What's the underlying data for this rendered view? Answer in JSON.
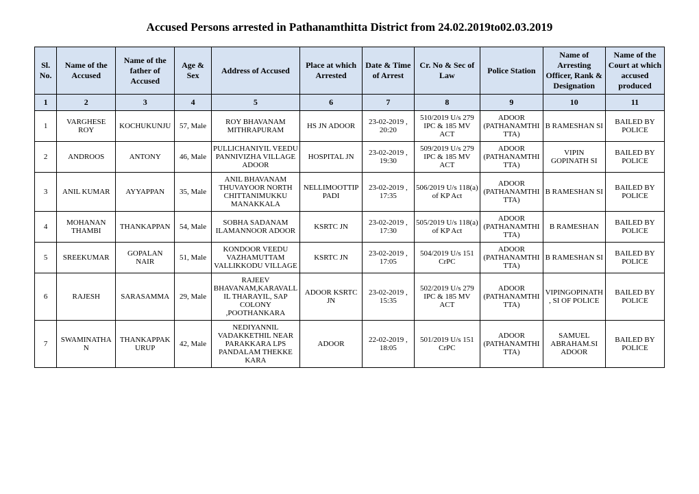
{
  "title": "Accused Persons arrested in   Pathanamthitta   District from   24.02.2019to02.03.2019",
  "headers": {
    "c1": "Sl. No.",
    "c2": "Name of the Accused",
    "c3": "Name of the father of Accused",
    "c4": "Age & Sex",
    "c5": "Address of Accused",
    "c6": "Place at which Arrested",
    "c7": "Date & Time of Arrest",
    "c8": "Cr. No & Sec of Law",
    "c9": "Police Station",
    "c10": "Name of Arresting Officer, Rank & Designation",
    "c11": "Name of the Court at which accused produced"
  },
  "numrow": [
    "1",
    "2",
    "3",
    "4",
    "5",
    "6",
    "7",
    "8",
    "9",
    "10",
    "11"
  ],
  "rows": [
    {
      "sl": "1",
      "name": "VARGHESE ROY",
      "father": "KOCHUKUNJU",
      "age": "57, Male",
      "address": "ROY BHAVANAM MITHRAPURAM",
      "place": "HS JN ADOOR",
      "datetime": "23-02-2019 , 20:20",
      "crno": "510/2019 U/s 279 IPC & 185 MV ACT",
      "station": "ADOOR (PATHANAMTHITTA)",
      "officer": "B RAMESHAN SI",
      "court": "BAILED BY POLICE"
    },
    {
      "sl": "2",
      "name": "ANDROOS",
      "father": "ANTONY",
      "age": "46, Male",
      "address": "PULLICHANIYIL VEEDU PANNIVIZHA VILLAGE ADOOR",
      "place": "HOSPITAL JN",
      "datetime": "23-02-2019 , 19:30",
      "crno": "509/2019 U/s 279 IPC & 185 MV ACT",
      "station": "ADOOR (PATHANAMTHITTA)",
      "officer": "VIPIN GOPINATH SI",
      "court": "BAILED BY POLICE"
    },
    {
      "sl": "3",
      "name": "ANIL KUMAR",
      "father": "AYYAPPAN",
      "age": "35, Male",
      "address": "ANIL BHAVANAM THUVAYOOR NORTH CHITTANIMUKKU MANAKKALA",
      "place": "NELLIMOOTTIP PADI",
      "datetime": "23-02-2019 , 17:35",
      "crno": "506/2019 U/s 118(a) of KP Act",
      "station": "ADOOR (PATHANAMTHITTA)",
      "officer": "B RAMESHAN SI",
      "court": "BAILED BY POLICE"
    },
    {
      "sl": "4",
      "name": "MOHANAN THAMBI",
      "father": "THANKAPPAN",
      "age": "54, Male",
      "address": "SOBHA SADANAM ILAMANNOOR ADOOR",
      "place": "KSRTC JN",
      "datetime": "23-02-2019 , 17:30",
      "crno": "505/2019 U/s 118(a) of KP Act",
      "station": "ADOOR (PATHANAMTHITTA)",
      "officer": "B RAMESHAN",
      "court": "BAILED BY POLICE"
    },
    {
      "sl": "5",
      "name": "SREEKUMAR",
      "father": "GOPALAN NAIR",
      "age": "51, Male",
      "address": "KONDOOR VEEDU VAZHAMUTTAM VALLIKKODU VILLAGE",
      "place": "KSRTC JN",
      "datetime": "23-02-2019 , 17:05",
      "crno": "504/2019 U/s 151 CrPC",
      "station": "ADOOR (PATHANAMTHITTA)",
      "officer": "B RAMESHAN SI",
      "court": "BAILED BY POLICE"
    },
    {
      "sl": "6",
      "name": "RAJESH",
      "father": "SARASAMMA",
      "age": "29, Male",
      "address": "RAJEEV BHAVANAM,KARAVALLIL THARAYIL, SAP COLONY ,POOTHANKARA",
      "place": "ADOOR KSRTC JN",
      "datetime": "23-02-2019 , 15:35",
      "crno": "502/2019 U/s 279 IPC & 185 MV ACT",
      "station": "ADOOR (PATHANAMTHITTA)",
      "officer": "VIPINGOPINATH, SI OF POLICE",
      "court": "BAILED BY POLICE"
    },
    {
      "sl": "7",
      "name": "SWAMINATHAN",
      "father": "THANKAPPAKURUP",
      "age": "42, Male",
      "address": "NEDIYANNIL VADAKKETHIL NEAR PARAKKARA LPS PANDALAM THEKKE KARA",
      "place": "ADOOR",
      "datetime": "22-02-2019 , 18:05",
      "crno": "501/2019 U/s 151 CrPC",
      "station": "ADOOR (PATHANAMTHITTA)",
      "officer": "SAMUEL ABRAHAM.SI ADOOR",
      "court": "BAILED BY POLICE"
    }
  ],
  "style": {
    "header_bg": "#d6e2f2",
    "border_color": "#000000",
    "font_body": "Times New Roman",
    "title_fontsize": 17,
    "cell_fontsize": 11,
    "header_fontsize": 12
  }
}
